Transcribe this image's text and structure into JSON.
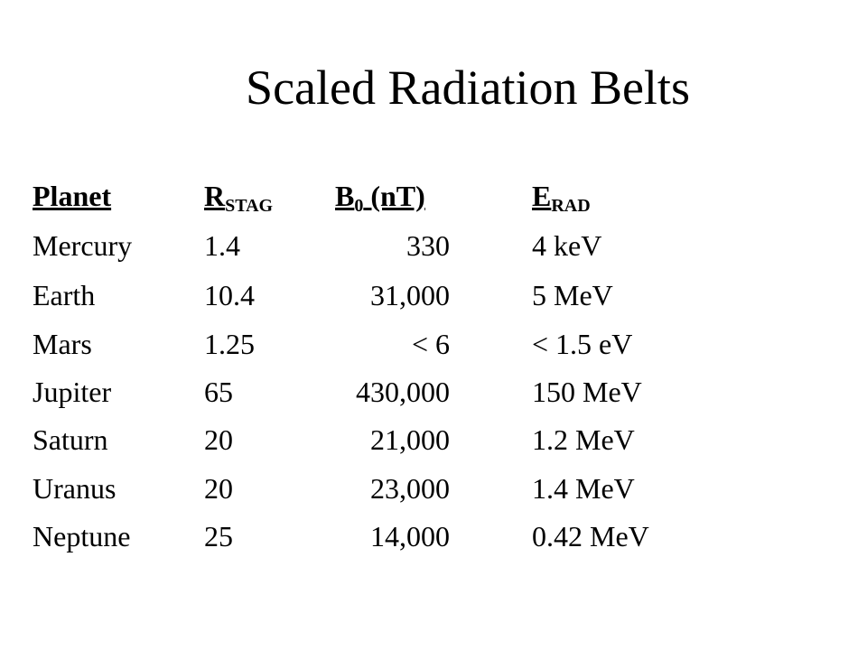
{
  "slide": {
    "title": "Scaled Radiation Belts"
  },
  "table": {
    "headers": {
      "planet": "Planet",
      "r_main": "R",
      "r_sub": "STAG",
      "b_main": "B",
      "b_sub": "0",
      "b_unit": " (nT)",
      "e_main": "E",
      "e_sub": "RAD"
    },
    "rows": [
      {
        "planet": "Mercury",
        "r": "1.4",
        "b": "330",
        "e": "4 keV"
      },
      {
        "planet": "Earth",
        "r": "10.4",
        "b": "31,000",
        "e": "5 MeV"
      },
      {
        "planet": "Mars",
        "r": "1.25",
        "b": "< 6",
        "e": "< 1.5 eV"
      },
      {
        "planet": "Jupiter",
        "r": "65",
        "b": "430,000",
        "e": "150 MeV"
      },
      {
        "planet": "Saturn",
        "r": "20",
        "b": "21,000",
        "e": "1.2 MeV"
      },
      {
        "planet": "Uranus",
        "r": "20",
        "b": "23,000",
        "e": "1.4 MeV"
      },
      {
        "planet": "Neptune",
        "r": "25",
        "b": "14,000",
        "e": "0.42 MeV"
      }
    ]
  }
}
